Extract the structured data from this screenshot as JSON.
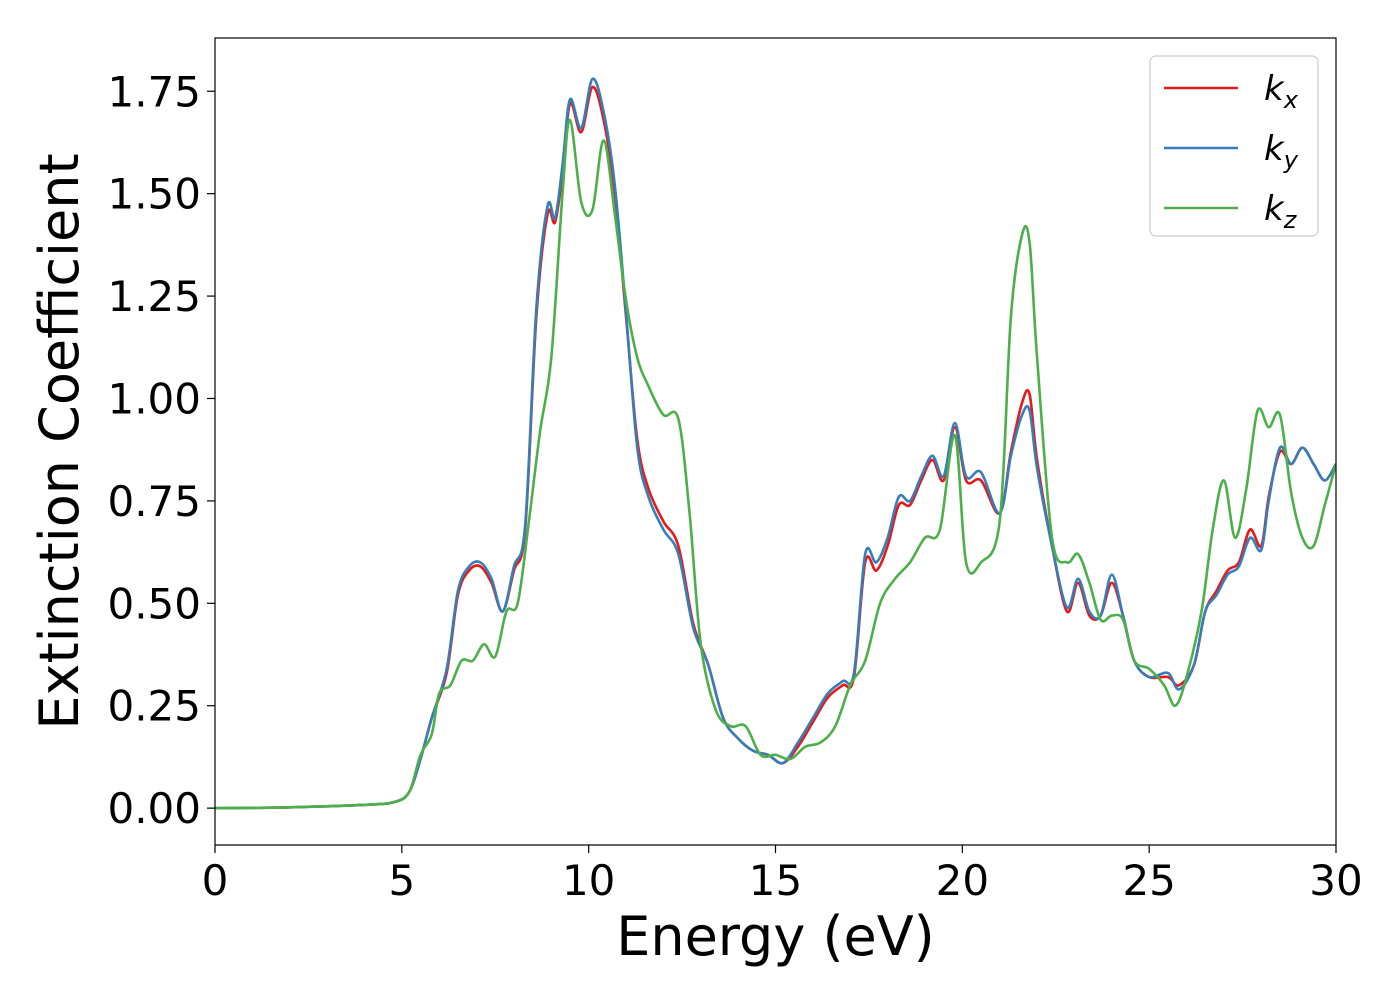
{
  "chart_data": {
    "type": "line",
    "xlabel": "Energy (eV)",
    "ylabel": "Extinction Coefficient",
    "xlim": [
      0,
      30
    ],
    "ylim": [
      -0.09,
      1.88
    ],
    "xticks": [
      "0",
      "5",
      "10",
      "15",
      "20",
      "25",
      "30"
    ],
    "yticks": [
      "0.00",
      "0.25",
      "0.50",
      "0.75",
      "1.00",
      "1.25",
      "1.50",
      "1.75"
    ],
    "grid": false,
    "legend_position": "top-right",
    "series": [
      {
        "name": "kx",
        "base": "k",
        "sub": "x",
        "color": "#e41a1c",
        "x": [
          0,
          2,
          4,
          4.8,
          5.2,
          5.5,
          5.8,
          6.2,
          6.5,
          6.8,
          7.1,
          7.4,
          7.7,
          8.0,
          8.3,
          8.6,
          8.9,
          9.1,
          9.3,
          9.5,
          9.8,
          10.1,
          10.4,
          10.7,
          11.0,
          11.3,
          11.6,
          12.0,
          12.4,
          12.8,
          13.2,
          13.6,
          14.0,
          14.4,
          14.8,
          15.2,
          15.6,
          16.0,
          16.4,
          16.8,
          17.1,
          17.4,
          17.7,
          18.0,
          18.3,
          18.6,
          18.9,
          19.2,
          19.5,
          19.8,
          20.1,
          20.5,
          21.0,
          21.3,
          21.6,
          21.8,
          22.0,
          22.4,
          22.8,
          23.1,
          23.4,
          23.7,
          24.0,
          24.3,
          24.6,
          25.0,
          25.5,
          25.8,
          26.2,
          26.5,
          26.8,
          27.1,
          27.4,
          27.7,
          28.0,
          28.2,
          28.5,
          28.8,
          29.1,
          29.4,
          29.7,
          30.0
        ],
        "y": [
          0.0,
          0.002,
          0.008,
          0.015,
          0.04,
          0.12,
          0.22,
          0.33,
          0.52,
          0.58,
          0.59,
          0.55,
          0.48,
          0.58,
          0.68,
          1.2,
          1.45,
          1.43,
          1.55,
          1.72,
          1.65,
          1.76,
          1.68,
          1.5,
          1.2,
          0.9,
          0.78,
          0.7,
          0.64,
          0.45,
          0.35,
          0.22,
          0.17,
          0.14,
          0.13,
          0.11,
          0.15,
          0.21,
          0.27,
          0.3,
          0.32,
          0.6,
          0.58,
          0.64,
          0.74,
          0.74,
          0.8,
          0.85,
          0.8,
          0.93,
          0.8,
          0.8,
          0.72,
          0.87,
          0.99,
          1.01,
          0.85,
          0.64,
          0.48,
          0.55,
          0.47,
          0.47,
          0.55,
          0.47,
          0.36,
          0.32,
          0.32,
          0.3,
          0.35,
          0.48,
          0.53,
          0.58,
          0.6,
          0.68,
          0.64,
          0.76,
          0.87,
          0.84,
          0.88,
          0.84,
          0.8,
          0.84
        ]
      },
      {
        "name": "ky",
        "base": "k",
        "sub": "y",
        "color": "#377eb8",
        "x": [
          0,
          2,
          4,
          4.8,
          5.2,
          5.5,
          5.8,
          6.2,
          6.5,
          6.8,
          7.1,
          7.4,
          7.7,
          8.0,
          8.3,
          8.6,
          8.9,
          9.1,
          9.3,
          9.5,
          9.8,
          10.1,
          10.4,
          10.7,
          11.0,
          11.3,
          11.6,
          12.0,
          12.4,
          12.8,
          13.2,
          13.6,
          14.0,
          14.4,
          14.8,
          15.2,
          15.6,
          16.0,
          16.4,
          16.8,
          17.1,
          17.4,
          17.7,
          18.0,
          18.3,
          18.6,
          18.9,
          19.2,
          19.5,
          19.8,
          20.1,
          20.5,
          21.0,
          21.3,
          21.6,
          21.8,
          22.0,
          22.4,
          22.8,
          23.1,
          23.4,
          23.7,
          24.0,
          24.3,
          24.6,
          25.0,
          25.5,
          25.8,
          26.2,
          26.5,
          26.8,
          27.1,
          27.4,
          27.7,
          28.0,
          28.2,
          28.5,
          28.8,
          29.1,
          29.4,
          29.7,
          30.0
        ],
        "y": [
          0.0,
          0.002,
          0.008,
          0.015,
          0.04,
          0.12,
          0.22,
          0.34,
          0.53,
          0.59,
          0.6,
          0.56,
          0.48,
          0.59,
          0.69,
          1.22,
          1.47,
          1.44,
          1.57,
          1.73,
          1.66,
          1.78,
          1.7,
          1.52,
          1.21,
          0.88,
          0.76,
          0.68,
          0.62,
          0.44,
          0.35,
          0.22,
          0.17,
          0.14,
          0.13,
          0.11,
          0.16,
          0.22,
          0.28,
          0.31,
          0.33,
          0.62,
          0.6,
          0.66,
          0.76,
          0.75,
          0.81,
          0.86,
          0.81,
          0.94,
          0.81,
          0.82,
          0.72,
          0.86,
          0.96,
          0.97,
          0.83,
          0.64,
          0.49,
          0.56,
          0.48,
          0.47,
          0.57,
          0.47,
          0.36,
          0.32,
          0.33,
          0.29,
          0.35,
          0.48,
          0.52,
          0.57,
          0.59,
          0.66,
          0.63,
          0.75,
          0.88,
          0.84,
          0.88,
          0.84,
          0.8,
          0.84
        ]
      },
      {
        "name": "kz",
        "base": "k",
        "sub": "z",
        "color": "#4daf4a",
        "x": [
          0,
          2,
          4,
          4.8,
          5.2,
          5.5,
          5.8,
          6.0,
          6.3,
          6.6,
          6.9,
          7.2,
          7.5,
          7.8,
          8.1,
          8.4,
          8.7,
          9.0,
          9.3,
          9.5,
          9.8,
          10.1,
          10.4,
          10.7,
          11.0,
          11.3,
          11.6,
          12.0,
          12.4,
          12.7,
          13.0,
          13.4,
          13.8,
          14.2,
          14.6,
          15.0,
          15.4,
          15.8,
          16.2,
          16.6,
          17.0,
          17.4,
          17.8,
          18.2,
          18.6,
          19.0,
          19.4,
          19.8,
          20.1,
          20.5,
          21.0,
          21.3,
          21.6,
          21.8,
          22.0,
          22.4,
          22.8,
          23.1,
          23.4,
          23.7,
          24.0,
          24.3,
          24.6,
          25.0,
          25.4,
          25.7,
          26.0,
          26.4,
          26.7,
          27.0,
          27.3,
          27.6,
          27.9,
          28.2,
          28.5,
          28.8,
          29.1,
          29.4,
          29.7,
          30.0
        ],
        "y": [
          0.0,
          0.002,
          0.008,
          0.015,
          0.04,
          0.13,
          0.18,
          0.28,
          0.3,
          0.36,
          0.36,
          0.4,
          0.37,
          0.48,
          0.5,
          0.7,
          0.92,
          1.1,
          1.5,
          1.68,
          1.48,
          1.46,
          1.63,
          1.45,
          1.24,
          1.1,
          1.03,
          0.96,
          0.95,
          0.72,
          0.4,
          0.24,
          0.2,
          0.2,
          0.13,
          0.13,
          0.12,
          0.15,
          0.16,
          0.2,
          0.3,
          0.36,
          0.5,
          0.56,
          0.6,
          0.66,
          0.68,
          0.91,
          0.6,
          0.6,
          0.7,
          1.2,
          1.4,
          1.38,
          1.1,
          0.66,
          0.6,
          0.62,
          0.55,
          0.46,
          0.47,
          0.46,
          0.36,
          0.34,
          0.3,
          0.25,
          0.32,
          0.48,
          0.68,
          0.8,
          0.66,
          0.78,
          0.97,
          0.93,
          0.96,
          0.77,
          0.66,
          0.64,
          0.74,
          0.84
        ]
      }
    ]
  }
}
